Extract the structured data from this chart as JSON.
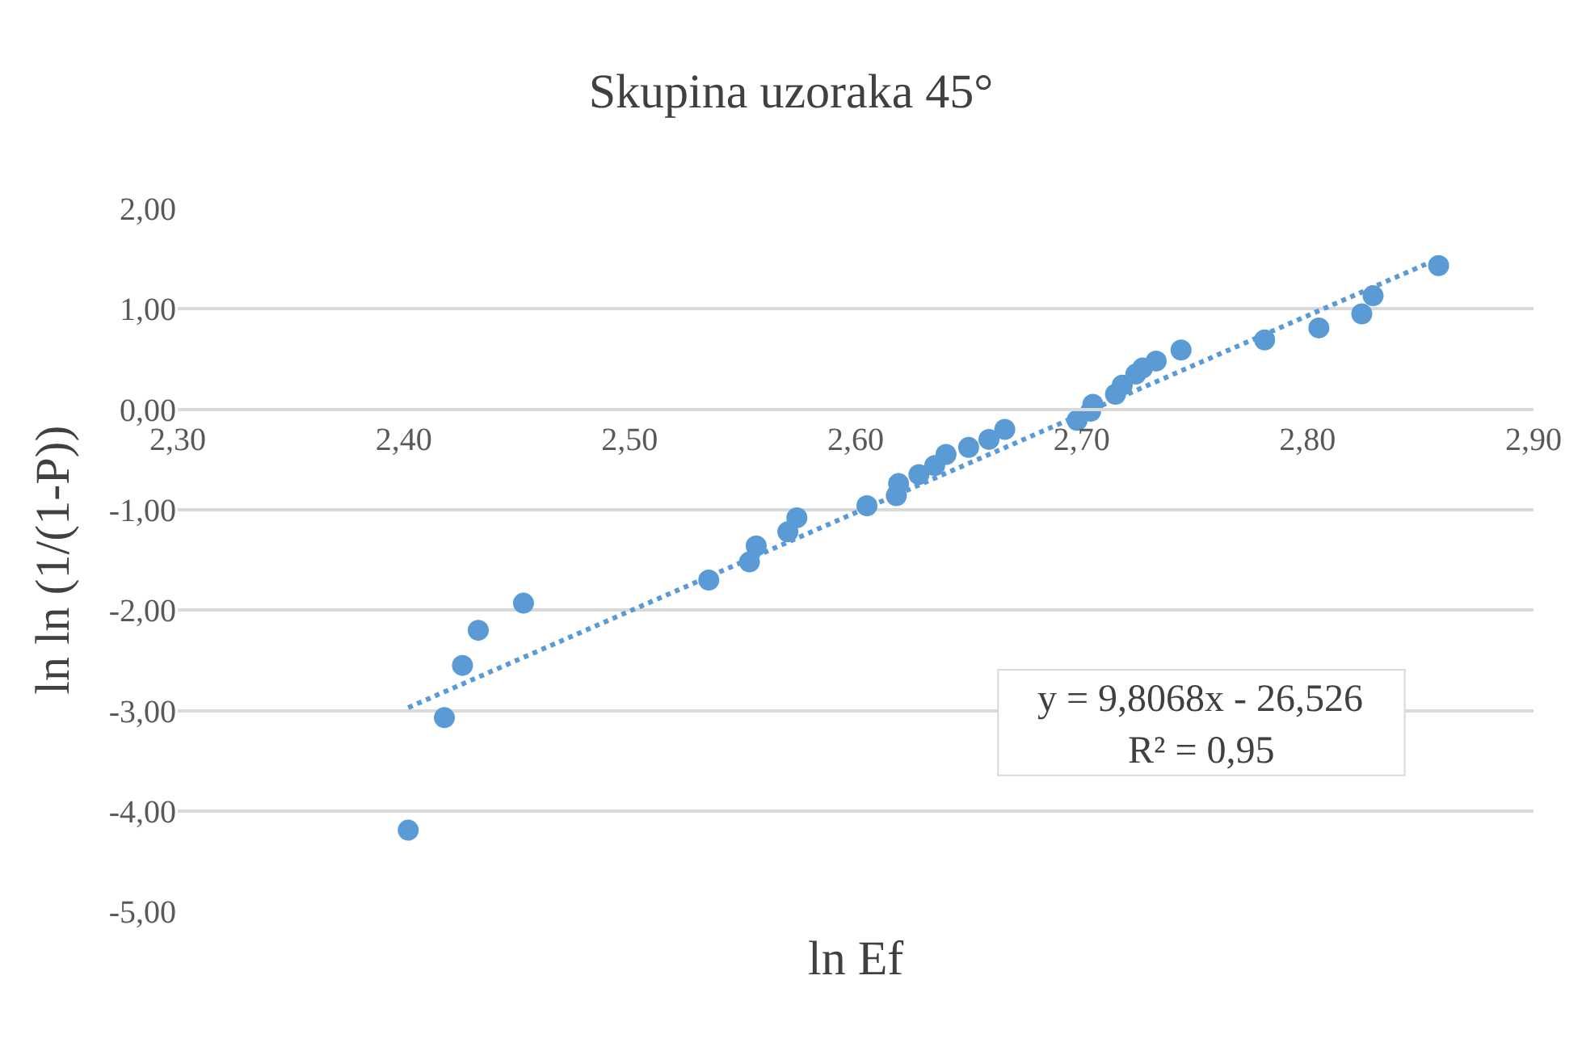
{
  "chart_data": {
    "type": "scatter",
    "title": "Skupina uzoraka 45°",
    "xlabel": "ln Ef",
    "ylabel": "ln ln (1/(1-P))",
    "x": [
      2.402,
      2.418,
      2.426,
      2.433,
      2.453,
      2.535,
      2.553,
      2.556,
      2.57,
      2.574,
      2.605,
      2.618,
      2.619,
      2.628,
      2.635,
      2.64,
      2.65,
      2.659,
      2.666,
      2.698,
      2.704,
      2.705,
      2.715,
      2.718,
      2.724,
      2.727,
      2.733,
      2.744,
      2.781,
      2.805,
      2.824,
      2.829,
      2.858
    ],
    "series": [
      {
        "color": "#5b9bd5",
        "marker": "circle",
        "values": [
          -4.19,
          -3.07,
          -2.55,
          -2.2,
          -1.93,
          -1.7,
          -1.52,
          -1.36,
          -1.22,
          -1.08,
          -0.96,
          -0.86,
          -0.74,
          -0.65,
          -0.56,
          -0.45,
          -0.38,
          -0.3,
          -0.2,
          -0.11,
          -0.02,
          0.05,
          0.15,
          0.24,
          0.35,
          0.41,
          0.48,
          0.59,
          0.69,
          0.81,
          0.95,
          1.13,
          1.43
        ]
      },
      {
        "type": "line",
        "color": "#5b9bd5",
        "line_style": "dotted",
        "marker": "none",
        "x": [
          2.402,
          2.858
        ],
        "values": [
          -2.97,
          1.5
        ]
      }
    ],
    "xlim": [
      2.3,
      2.9
    ],
    "xticks": [
      {
        "value": 2.3,
        "label": "2,30"
      },
      {
        "value": 2.4,
        "label": "2,40"
      },
      {
        "value": 2.5,
        "label": "2,50"
      },
      {
        "value": 2.6,
        "label": "2,60"
      },
      {
        "value": 2.7,
        "label": "2,70"
      },
      {
        "value": 2.8,
        "label": "2,80"
      },
      {
        "value": 2.9,
        "label": "2,90"
      }
    ],
    "ylim": [
      -5,
      2
    ],
    "yticks": [
      {
        "value": -5,
        "label": "-5,00"
      },
      {
        "value": -4,
        "label": "-4,00"
      },
      {
        "value": -3,
        "label": "-3,00"
      },
      {
        "value": -2,
        "label": "-2,00"
      },
      {
        "value": -1,
        "label": "-1,00"
      },
      {
        "value": 0,
        "label": "0,00"
      },
      {
        "value": 1,
        "label": "1,00"
      },
      {
        "value": 2,
        "label": "2,00"
      }
    ],
    "grid": "y",
    "annotations": [
      "y = 9,8068x - 26,526",
      "R² = 0,95"
    ]
  }
}
